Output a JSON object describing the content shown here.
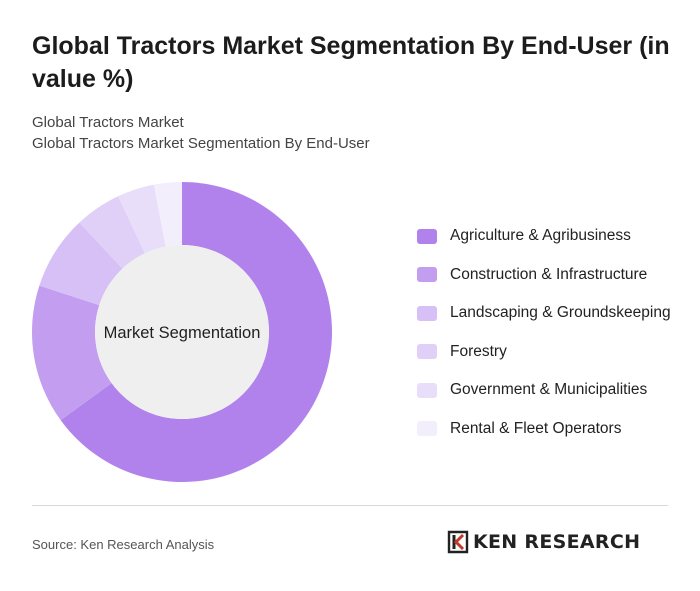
{
  "header": {
    "title": "Global Tractors Market Segmentation By End-User (in value %)",
    "subtitle_1": "Global Tractors Market",
    "subtitle_2": "Global Tractors Market Segmentation By End-User"
  },
  "chart_data": {
    "type": "pie",
    "style": "donut",
    "center_label": "Market Segmentation",
    "categories": [
      "Agriculture & Agribusiness",
      "Construction & Infrastructure",
      "Landscaping & Groundskeeping",
      "Forestry",
      "Government & Municipalities",
      "Rental & Fleet Operators"
    ],
    "values": [
      65,
      15,
      8,
      5,
      4,
      3
    ],
    "colors": [
      "#b182ec",
      "#c39ef0",
      "#d6c0f5",
      "#e0d0f7",
      "#e8def9",
      "#f3eefc"
    ],
    "legend_position": "right"
  },
  "footer": {
    "source": "Source: Ken Research Analysis",
    "brand_logo_text": "KEN RESEARCH"
  }
}
